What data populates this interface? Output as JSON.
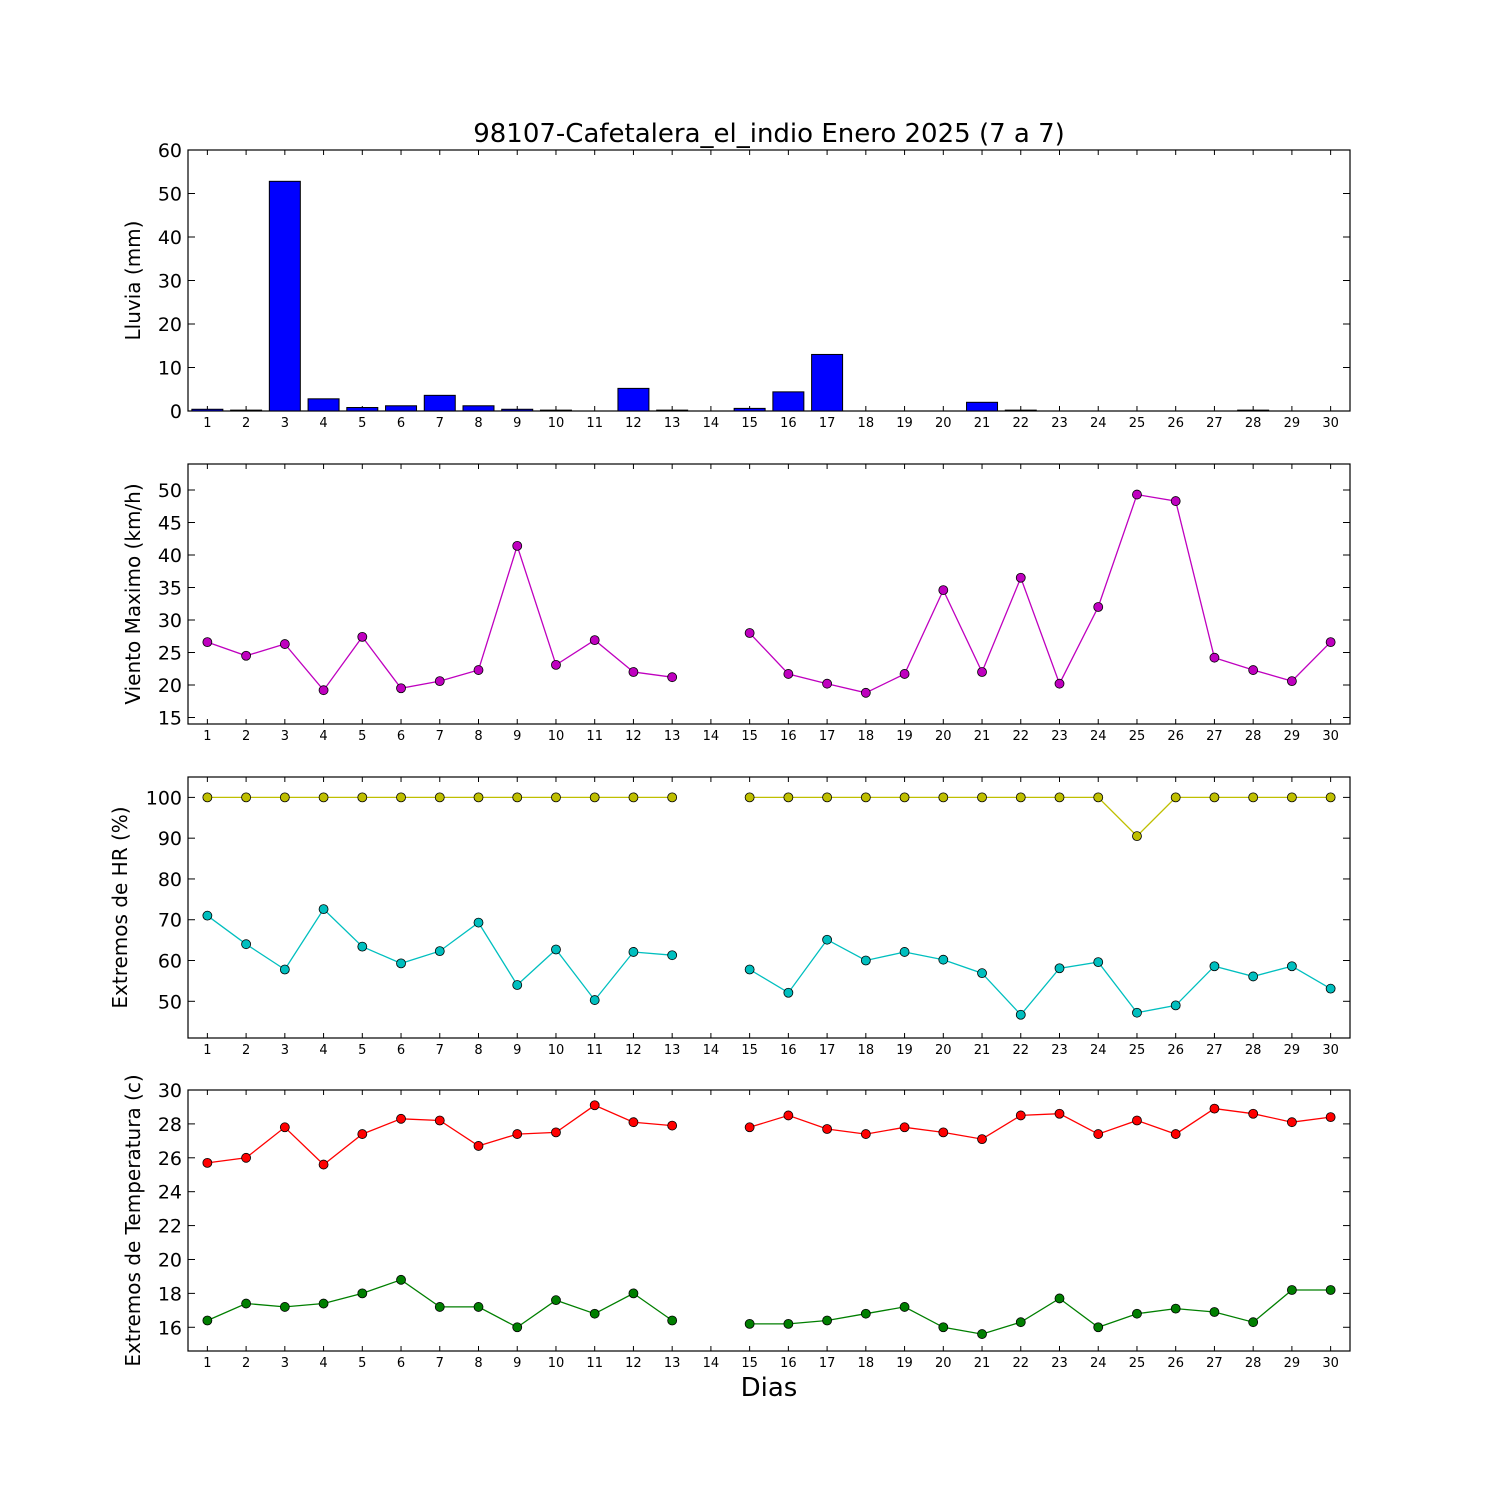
{
  "title": "98107-Cafetalera_el_indio Enero 2025  (7 a 7)",
  "xlabel": "Dias",
  "chart_data": [
    {
      "type": "bar",
      "ylabel": "Lluvia (mm)",
      "ylim": [
        0,
        60
      ],
      "yticks": [
        0,
        10,
        20,
        30,
        40,
        50,
        60
      ],
      "x": [
        1,
        2,
        3,
        4,
        5,
        6,
        7,
        8,
        9,
        10,
        11,
        12,
        13,
        14,
        15,
        16,
        17,
        18,
        19,
        20,
        21,
        22,
        23,
        24,
        25,
        26,
        27,
        28,
        29,
        30
      ],
      "values": [
        0.4,
        0.2,
        52.8,
        2.8,
        0.8,
        1.2,
        3.6,
        1.2,
        0.4,
        0.2,
        0,
        5.2,
        0.2,
        null,
        0.6,
        4.4,
        13.0,
        0,
        0,
        0,
        2.0,
        0.2,
        0,
        0,
        0,
        0,
        0,
        0.2,
        0,
        0
      ],
      "color": "#0000ff"
    },
    {
      "type": "line",
      "ylabel": "Viento Maximo (km/h)",
      "ylim": [
        14,
        54
      ],
      "yticks": [
        15,
        20,
        25,
        30,
        35,
        40,
        45,
        50
      ],
      "x": [
        1,
        2,
        3,
        4,
        5,
        6,
        7,
        8,
        9,
        10,
        11,
        12,
        13,
        14,
        15,
        16,
        17,
        18,
        19,
        20,
        21,
        22,
        23,
        24,
        25,
        26,
        27,
        28,
        29,
        30
      ],
      "series": [
        {
          "values": [
            26.6,
            24.5,
            26.3,
            19.2,
            27.4,
            19.5,
            20.6,
            22.3,
            41.4,
            23.1,
            26.9,
            22.0,
            21.2,
            null,
            28.0,
            21.7,
            20.2,
            18.8,
            21.7,
            34.6,
            22.0,
            36.5,
            20.2,
            32.0,
            49.3,
            48.3,
            24.2,
            22.3,
            20.6,
            26.6
          ],
          "color": "#bf00bf"
        }
      ]
    },
    {
      "type": "line",
      "ylabel": "Extremos de HR (%)",
      "ylim": [
        41,
        105
      ],
      "yticks": [
        50,
        60,
        70,
        80,
        90,
        100
      ],
      "x": [
        1,
        2,
        3,
        4,
        5,
        6,
        7,
        8,
        9,
        10,
        11,
        12,
        13,
        14,
        15,
        16,
        17,
        18,
        19,
        20,
        21,
        22,
        23,
        24,
        25,
        26,
        27,
        28,
        29,
        30
      ],
      "series": [
        {
          "values": [
            100,
            100,
            100,
            100,
            100,
            100,
            100,
            100,
            100,
            100,
            100,
            100,
            100,
            null,
            100,
            100,
            100,
            100,
            100,
            100,
            100,
            100,
            100,
            100,
            90.5,
            100,
            100,
            100,
            100,
            100
          ],
          "color": "#bfbf00"
        },
        {
          "values": [
            71.0,
            64.0,
            57.8,
            72.6,
            63.4,
            59.3,
            62.3,
            69.3,
            54.0,
            62.7,
            50.3,
            62.1,
            61.3,
            null,
            57.8,
            52.1,
            65.1,
            60.0,
            62.1,
            60.2,
            56.9,
            46.7,
            58.1,
            59.6,
            47.2,
            49.0,
            58.6,
            56.1,
            58.6,
            53.1
          ],
          "color": "#00bfbf"
        }
      ]
    },
    {
      "type": "line",
      "ylabel": "Extremos de Temperatura (c)",
      "ylim": [
        14.6,
        30
      ],
      "yticks": [
        16,
        18,
        20,
        22,
        24,
        26,
        28,
        30
      ],
      "x": [
        1,
        2,
        3,
        4,
        5,
        6,
        7,
        8,
        9,
        10,
        11,
        12,
        13,
        14,
        15,
        16,
        17,
        18,
        19,
        20,
        21,
        22,
        23,
        24,
        25,
        26,
        27,
        28,
        29,
        30
      ],
      "series": [
        {
          "values": [
            25.7,
            26.0,
            27.8,
            25.6,
            27.4,
            28.3,
            28.2,
            26.7,
            27.4,
            27.5,
            29.1,
            28.1,
            27.9,
            null,
            27.8,
            28.5,
            27.7,
            27.4,
            27.8,
            27.5,
            27.1,
            28.5,
            28.6,
            27.4,
            28.2,
            27.4,
            28.9,
            28.6,
            28.1,
            28.4
          ],
          "color": "#ff0000"
        },
        {
          "values": [
            16.4,
            17.4,
            17.2,
            17.4,
            18.0,
            18.8,
            17.2,
            17.2,
            16.0,
            17.6,
            16.8,
            18.0,
            16.4,
            null,
            16.2,
            16.2,
            16.4,
            16.8,
            17.2,
            16.0,
            15.6,
            16.3,
            17.7,
            16.0,
            16.8,
            17.1,
            16.9,
            16.3,
            18.2,
            18.2
          ],
          "color": "#007f00"
        }
      ]
    }
  ]
}
